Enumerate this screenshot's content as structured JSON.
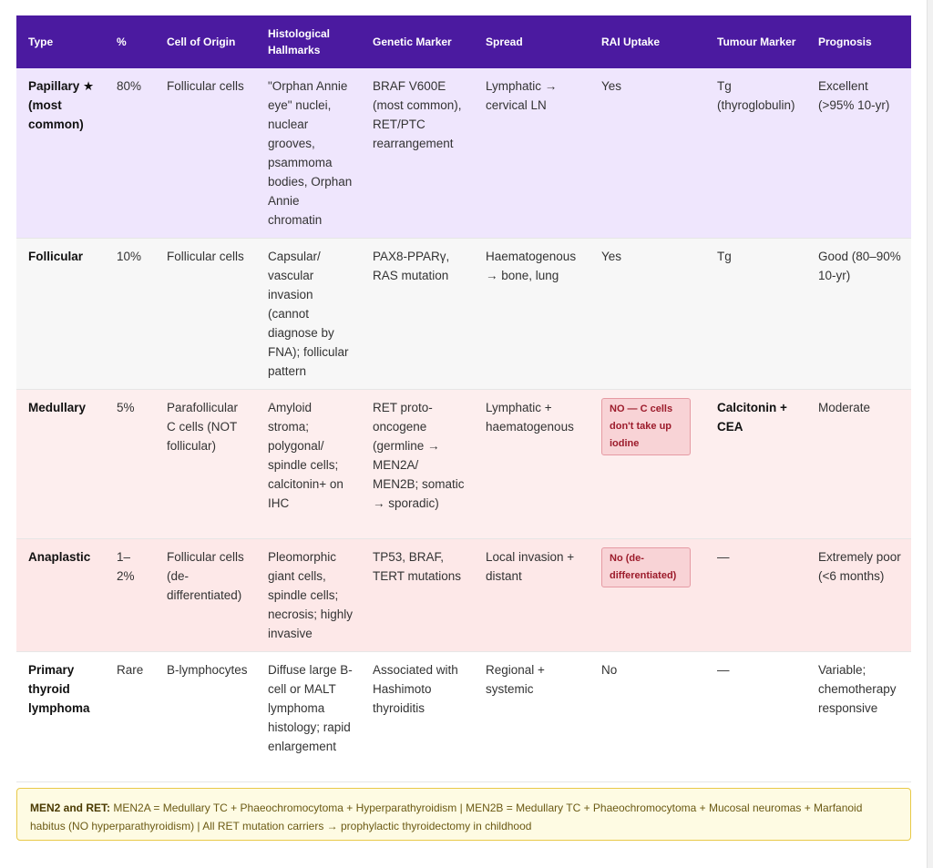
{
  "columns": [
    "Type",
    "%",
    "Cell of Origin",
    "Histological Hallmarks",
    "Genetic Marker",
    "Spread",
    "RAI Uptake",
    "Tumour Marker",
    "Prognosis"
  ],
  "rows": [
    {
      "type": "Papillary ★ (most common)",
      "percent": "80%",
      "origin": "Follicular cells",
      "histology": "\"Orphan Annie eye\" nuclei, nuclear grooves, psammoma bodies, Orphan Annie chromatin",
      "genetic": "BRAF V600E (most common), RET/PTC rearrangement",
      "spread": "Lymphatic → cervical LN",
      "rai": "Yes",
      "marker": "Tg (thyroglobulin)",
      "prognosis": "Excellent (>95% 10-yr)"
    },
    {
      "type": "Follicular",
      "percent": "10%",
      "origin": "Follicular cells",
      "histology": "Capsular/ vascular invasion (cannot diagnose by FNA); follicular pattern",
      "genetic": "PAX8-PPARγ, RAS mutation",
      "spread": "Haematogenous → bone, lung",
      "rai": "Yes",
      "marker": "Tg",
      "prognosis": "Good (80–90% 10-yr)"
    },
    {
      "type": "Medullary",
      "percent": "5%",
      "origin": "Parafollicular C cells (NOT follicular)",
      "histology": "Amyloid stroma; polygonal/ spindle cells; calcitonin+ on IHC",
      "genetic": "RET proto-oncogene (germline → MEN2A/ MEN2B; somatic → sporadic)",
      "spread": "Lymphatic + haematogenous",
      "rai": "NO — C cells don't take up iodine",
      "marker": "Calcitonin + CEA",
      "prognosis": "Moderate"
    },
    {
      "type": "Anaplastic",
      "percent": "1–2%",
      "origin": "Follicular cells (de-differentiated)",
      "histology": "Pleomorphic giant cells, spindle cells; necrosis; highly invasive",
      "genetic": "TP53, BRAF, TERT mutations",
      "spread": "Local invasion + distant",
      "rai": "No (de-differentiated)",
      "marker": "—",
      "prognosis": "Extremely poor (<6 months)"
    },
    {
      "type": "Primary thyroid lymphoma",
      "percent": "Rare",
      "origin": "B-lymphocytes",
      "histology": "Diffuse large B-cell or MALT lymphoma histology; rapid enlargement",
      "genetic": "Associated with Hashimoto thyroiditis",
      "spread": "Regional + systemic",
      "rai": "No",
      "marker": "—",
      "prognosis": "Variable; chemotherapy responsive"
    }
  ],
  "note": {
    "label": "MEN2 and RET:",
    "text": "MEN2A = Medullary TC + Phaeochromocytoma + Hyperparathyroidism | MEN2B = Medullary TC + Phaeochromocytoma + Mucosal neuromas + Marfanoid habitus (NO hyperparathyroidism) | All RET mutation carriers → prophylactic thyroidectomy in childhood"
  },
  "colors": {
    "header": "#4b1aa0",
    "papillary_row": "#efe6fd",
    "follicular_row": "#f7f7f7",
    "medullary_row": "#fdeeee",
    "anaplastic_row": "#fde8e8",
    "badge_text": "#9c1b2b",
    "note_bg": "#fefbe3"
  }
}
